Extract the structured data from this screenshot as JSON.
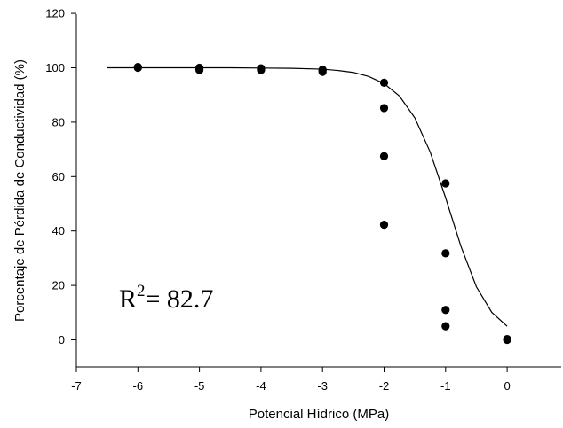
{
  "chart_data": {
    "type": "scatter",
    "title": "",
    "xlabel": "Potencial Hídrico (MPa)",
    "ylabel": "Porcentaje de Pérdida de Conductividad (%)",
    "xlim": [
      -7,
      0.8
    ],
    "ylim": [
      -10,
      120
    ],
    "x_ticks": [
      -7,
      -6,
      -5,
      -4,
      -3,
      -2,
      -1,
      0
    ],
    "y_ticks": [
      0,
      20,
      40,
      60,
      80,
      100,
      120
    ],
    "x_tick_labels": [
      "-7",
      "-6",
      "-5",
      "-4",
      "-3",
      "-2",
      "-1",
      "0"
    ],
    "y_tick_labels": [
      "0",
      "20",
      "40",
      "60",
      "80",
      "100",
      "120"
    ],
    "grid": false,
    "legend": "none",
    "series": [
      {
        "kind": "points",
        "color": "#000000",
        "x": [
          -6,
          -6,
          -5,
          -5,
          -5,
          -4,
          -4,
          -4,
          -3,
          -3,
          -3,
          -2,
          -2,
          -2,
          -2,
          -1,
          -1,
          -1,
          -1,
          0,
          0
        ],
        "y": [
          100,
          100.3,
          100,
          99.2,
          99.6,
          99.8,
          99.2,
          99.5,
          99.3,
          98.5,
          99.0,
          94.5,
          85.2,
          67.5,
          42.3,
          57.5,
          31.8,
          11.0,
          5.0,
          0.3,
          0.0
        ]
      },
      {
        "kind": "fitted-curve",
        "color": "#000000",
        "x": [
          -6.5,
          -6.0,
          -5.5,
          -5.0,
          -4.5,
          -4.0,
          -3.5,
          -3.0,
          -2.75,
          -2.5,
          -2.25,
          -2.0,
          -1.75,
          -1.5,
          -1.25,
          -1.0,
          -0.75,
          -0.5,
          -0.25,
          0.0
        ],
        "y": [
          100,
          100,
          100,
          100,
          100,
          99.9,
          99.8,
          99.5,
          99.0,
          98.3,
          96.8,
          94.2,
          89.6,
          81.6,
          69.0,
          52.2,
          34.3,
          19.5,
          10.1,
          5.0
        ]
      }
    ],
    "annotation": {
      "base": "R",
      "superscript": "2",
      "text": "= 82.7"
    }
  }
}
